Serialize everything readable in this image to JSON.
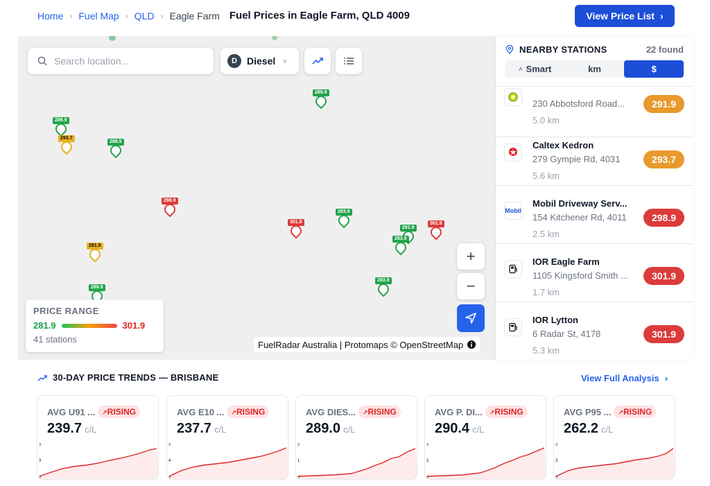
{
  "breadcrumb": {
    "home": "Home",
    "fuel_map": "Fuel Map",
    "state": "QLD",
    "current": "Eagle Farm"
  },
  "page_title": "Fuel Prices in Eagle Farm, QLD 4009",
  "header": {
    "view_price_list": "View Price List"
  },
  "map": {
    "search_placeholder": "Search location...",
    "fuel_type": {
      "badge": "D",
      "label": "Diesel"
    },
    "price_range": {
      "title": "PRICE RANGE",
      "min": "281.9",
      "max": "301.9",
      "count": "41 stations"
    },
    "attribution": "FuelRadar Australia | Protomaps © OpenStreetMap",
    "pins": [
      {
        "price": "289.9",
        "color": "#22a34a"
      },
      {
        "price": "289.9",
        "color": "#22a34a"
      },
      {
        "price": "293.7",
        "color": "#e5b122"
      },
      {
        "price": "288.5",
        "color": "#22a34a"
      },
      {
        "price": "298.9",
        "color": "#dc3b3b"
      },
      {
        "price": "301.9",
        "color": "#dc3b3b"
      },
      {
        "price": "283.9",
        "color": "#22a34a"
      },
      {
        "price": "281.9",
        "color": "#22a34a"
      },
      {
        "price": "301.9",
        "color": "#dc3b3b"
      },
      {
        "price": "291.9",
        "color": "#e5b122"
      },
      {
        "price": "289.9",
        "color": "#22a34a"
      },
      {
        "price": "283.9",
        "color": "#22a34a"
      },
      {
        "price": "283.9",
        "color": "#22a34a"
      },
      {
        "price": "289.9",
        "color": "#22a34a"
      }
    ]
  },
  "nearby": {
    "title": "NEARBY STATIONS",
    "count": "22 found",
    "sort": {
      "smart": "Smart",
      "km": "km",
      "price": "$"
    },
    "stations": [
      {
        "name": "",
        "address": "230 Abbotsford Road...",
        "distance": "5.0 km",
        "price": "291.9",
        "logo": "bp",
        "color": "#e89a2c"
      },
      {
        "name": "Caltex Kedron",
        "address": "279 Gympie Rd, 4031",
        "distance": "5.6 km",
        "price": "293.7",
        "logo": "caltex",
        "color": "#e89a2c"
      },
      {
        "name": "Mobil Driveway Serv...",
        "address": "154 Kitchener Rd, 4011",
        "distance": "2.5 km",
        "price": "298.9",
        "logo": "Mobil",
        "color": "#dc3b3b"
      },
      {
        "name": "IOR Eagle Farm",
        "address": "1105 Kingsford Smith ...",
        "distance": "1.7 km",
        "price": "301.9",
        "logo": "pump",
        "color": "#dc3b3b"
      },
      {
        "name": "IOR Lytton",
        "address": "6 Radar St, 4178",
        "distance": "5.3 km",
        "price": "301.9",
        "logo": "pump",
        "color": "#dc3b3b"
      }
    ]
  },
  "trends": {
    "title": "30-DAY PRICE TRENDS — BRISBANE",
    "view_full": "View Full Analysis",
    "unit": "c/L",
    "cards": [
      {
        "name": "AVG U91 ...",
        "value": "239.7",
        "trend": "RISING",
        "axis_top": "?",
        "axis_mid": "3",
        "axis_bot": "?"
      },
      {
        "name": "AVG E10 ...",
        "value": "237.7",
        "trend": "RISING",
        "axis_top": "?",
        "axis_mid": "4",
        "axis_bot": "?"
      },
      {
        "name": "AVG DIES...",
        "value": "289.0",
        "trend": "RISING",
        "axis_top": "?",
        "axis_mid": "1",
        "axis_bot": "?"
      },
      {
        "name": "AVG P. DI...",
        "value": "290.4",
        "trend": "RISING",
        "axis_top": "?",
        "axis_mid": "2",
        "axis_bot": "?"
      },
      {
        "name": "AVG P95 ...",
        "value": "262.2",
        "trend": "RISING",
        "axis_top": "?",
        "axis_mid": "3",
        "axis_bot": "?"
      }
    ]
  }
}
